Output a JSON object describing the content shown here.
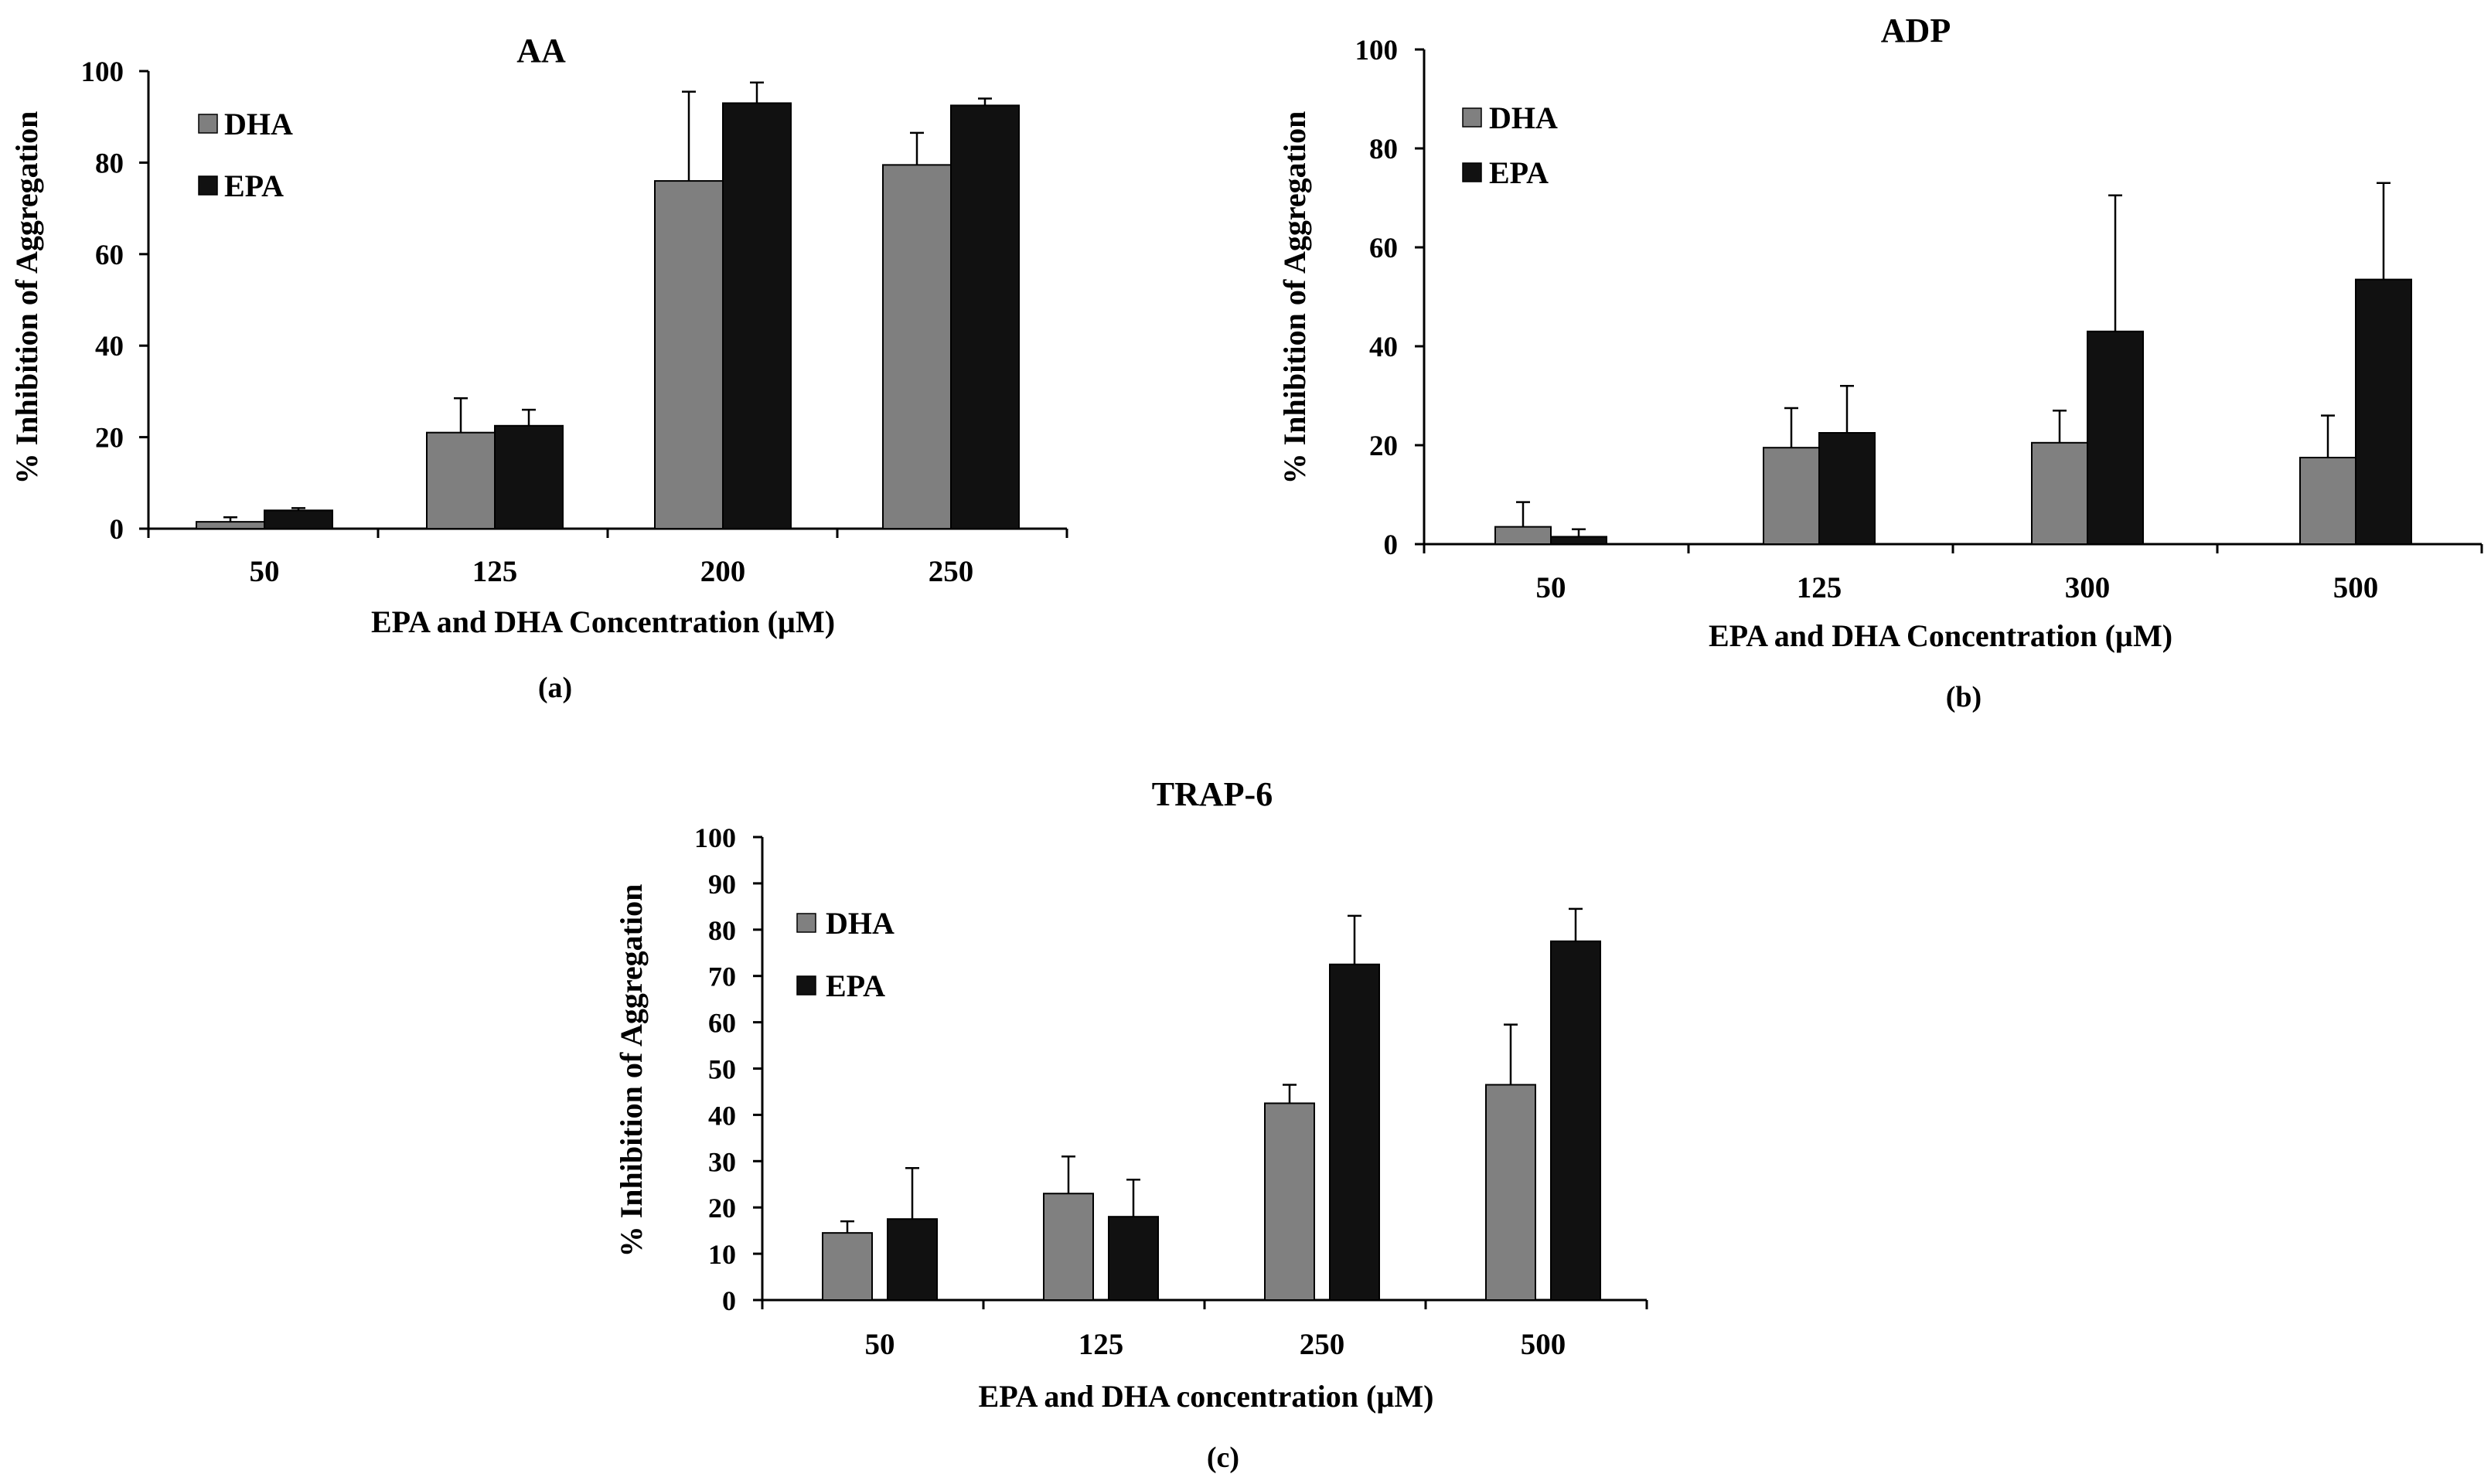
{
  "colors": {
    "dha": "#808080",
    "dha_a": "#7f7f7f",
    "epa": "#111111",
    "axis": "#000000"
  },
  "chart_data": [
    {
      "type": "bar",
      "title": "AA",
      "panel_label": "(a)",
      "xlabel": "EPA and DHA Concentration (µM)",
      "ylabel": "% Inhibition of Aggregation",
      "ylim": [
        0,
        100
      ],
      "yticks": [
        "0",
        "20",
        "40",
        "60",
        "80",
        "100"
      ],
      "categories": [
        "50",
        "125",
        "200",
        "250"
      ],
      "legend_position": "top-left",
      "series": [
        {
          "name": "DHA",
          "values": [
            1.5,
            21,
            76,
            79.5
          ],
          "errors": [
            1,
            7.5,
            19.5,
            7
          ]
        },
        {
          "name": "EPA",
          "values": [
            4,
            22.5,
            93,
            92.5
          ],
          "errors": [
            0.5,
            3.5,
            4.5,
            1.5
          ]
        }
      ]
    },
    {
      "type": "bar",
      "title": "ADP",
      "panel_label": "(b)",
      "xlabel": "EPA and DHA Concentration (µM)",
      "ylabel": "% Inhibition of Aggregation",
      "ylim": [
        0,
        100
      ],
      "yticks": [
        "0",
        "20",
        "40",
        "60",
        "80",
        "100"
      ],
      "categories": [
        "50",
        "125",
        "300",
        "500"
      ],
      "legend_position": "top-left",
      "series": [
        {
          "name": "DHA",
          "values": [
            3.5,
            19.5,
            20.5,
            17.5
          ],
          "errors": [
            5,
            8,
            6.5,
            8.5
          ]
        },
        {
          "name": "EPA",
          "values": [
            1.5,
            22.5,
            43,
            53.5
          ],
          "errors": [
            1.5,
            9.5,
            27.5,
            19.5
          ]
        }
      ]
    },
    {
      "type": "bar",
      "title": "TRAP-6",
      "panel_label": "(c)",
      "xlabel": "EPA and DHA concentration (µM)",
      "ylabel": "% Inhibition of Aggregation",
      "ylim": [
        0,
        100
      ],
      "yticks": [
        "0",
        "10",
        "20",
        "30",
        "40",
        "50",
        "60",
        "70",
        "80",
        "90",
        "100"
      ],
      "categories": [
        "50",
        "125",
        "250",
        "500"
      ],
      "legend_position": "top-left",
      "series": [
        {
          "name": "DHA",
          "values": [
            14.5,
            23,
            42.5,
            46.5
          ],
          "errors": [
            2.5,
            8,
            4,
            13
          ]
        },
        {
          "name": "EPA",
          "values": [
            17.5,
            18,
            72.5,
            77.5
          ],
          "errors": [
            11,
            8,
            10.5,
            7
          ]
        }
      ]
    }
  ]
}
